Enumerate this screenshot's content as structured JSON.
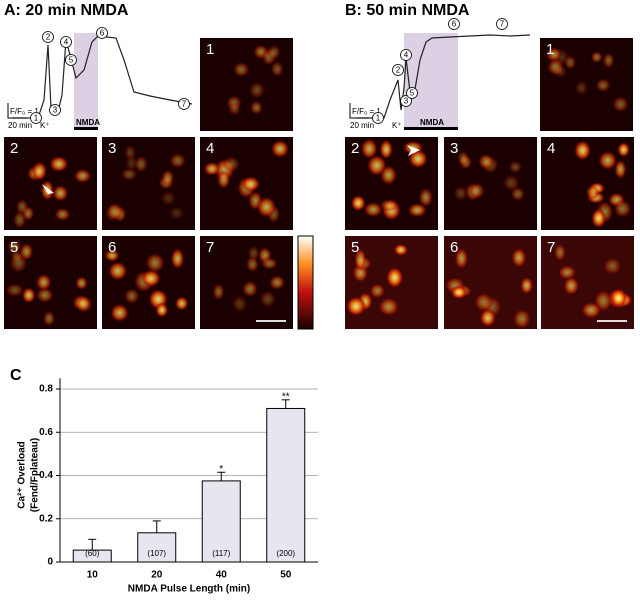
{
  "panel_a": {
    "title": "A: 20 min NMDA",
    "markers": [
      "1",
      "2",
      "3",
      "4",
      "5",
      "6",
      "7"
    ],
    "scale_label": "F/F₀ = 1",
    "time_label": "20 min",
    "k_label": "K⁺",
    "nmda_label": "NMDA",
    "images": [
      "1",
      "2",
      "3",
      "4",
      "5",
      "6",
      "7"
    ]
  },
  "panel_b": {
    "title": "B: 50 min NMDA",
    "markers": [
      "1",
      "2",
      "3",
      "4",
      "5",
      "6",
      "7"
    ],
    "scale_label": "F/F₀ = 1",
    "time_label": "20 min",
    "k_label": "K⁺",
    "nmda_label": "NMDA",
    "images": [
      "1",
      "2",
      "3",
      "4",
      "5",
      "6",
      "7"
    ]
  },
  "chart_data": {
    "type": "bar",
    "panel_label": "C",
    "y_label": [
      "Ca²⁺ Overload",
      "(Fend/Fplateau)"
    ],
    "x_label": "NMDA Pulse Length (min)",
    "categories": [
      "10",
      "20",
      "40",
      "50"
    ],
    "values": [
      0.055,
      0.135,
      0.375,
      0.71
    ],
    "errors": [
      0.05,
      0.055,
      0.04,
      0.04
    ],
    "n_labels": [
      "(60)",
      "(107)",
      "(117)",
      "(200)"
    ],
    "significance": [
      null,
      null,
      "*",
      "**"
    ],
    "color": "#e6e6ee",
    "ylim": [
      0,
      0.85
    ],
    "yticks": [
      0,
      0.2,
      0.4,
      0.6,
      0.8
    ],
    "grid": true
  }
}
